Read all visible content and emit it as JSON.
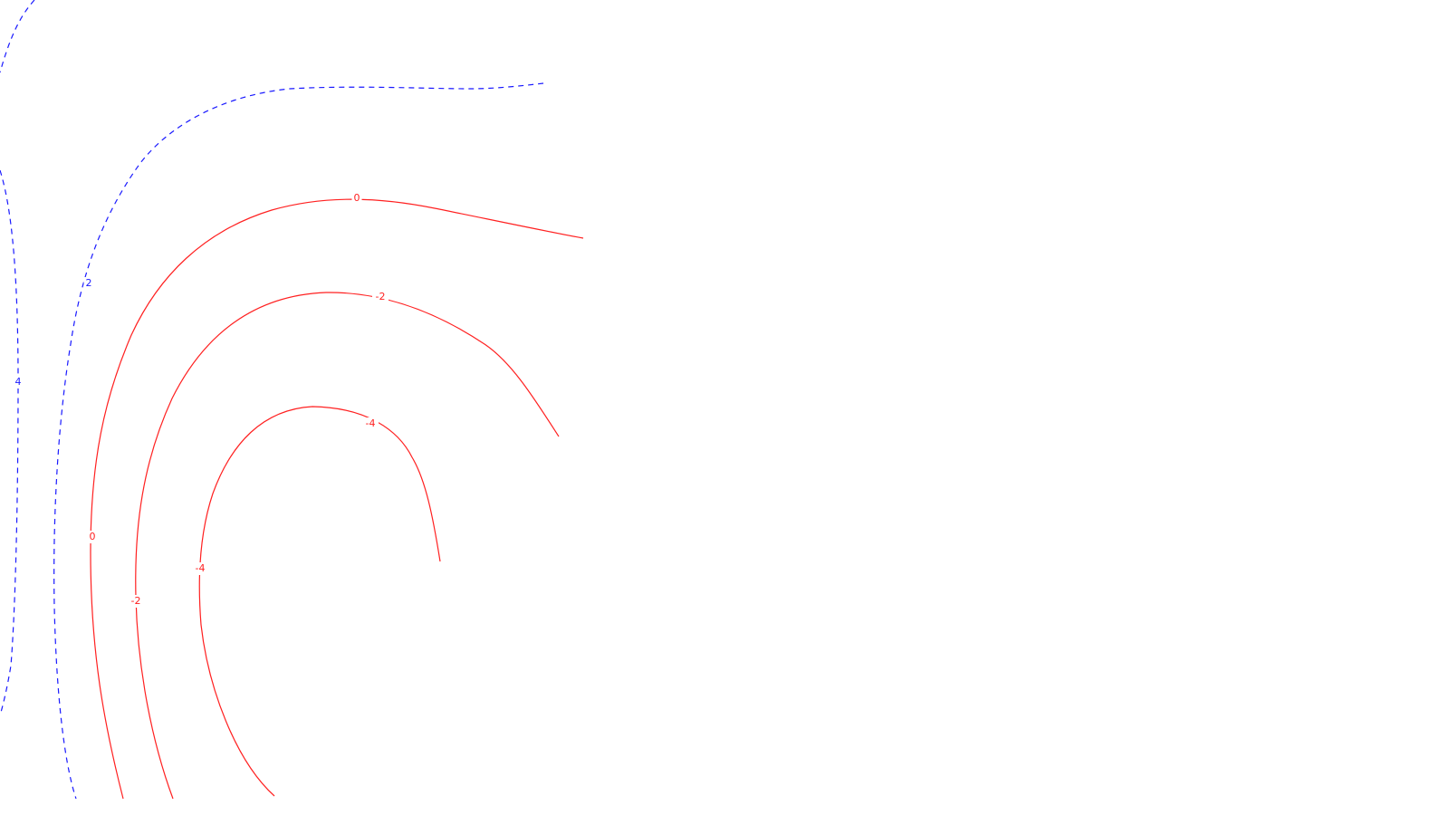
{
  "chart_data": {
    "type": "contour",
    "title": "",
    "xlabel": "",
    "ylabel": "",
    "grid": false,
    "colors": {
      "positive": "#1a1aff",
      "non_positive": "#ff2020"
    },
    "line_styles": {
      "positive": "dashed",
      "non_positive": "solid"
    },
    "contour_levels": [
      {
        "level": 4,
        "label": "4",
        "sign": "positive"
      },
      {
        "level": 2,
        "label": "2",
        "sign": "positive"
      },
      {
        "level": 0,
        "label": "0",
        "sign": "non_positive"
      },
      {
        "level": -2,
        "label": "-2",
        "sign": "non_positive"
      },
      {
        "level": -4,
        "label": "-4",
        "sign": "non_positive"
      }
    ]
  }
}
